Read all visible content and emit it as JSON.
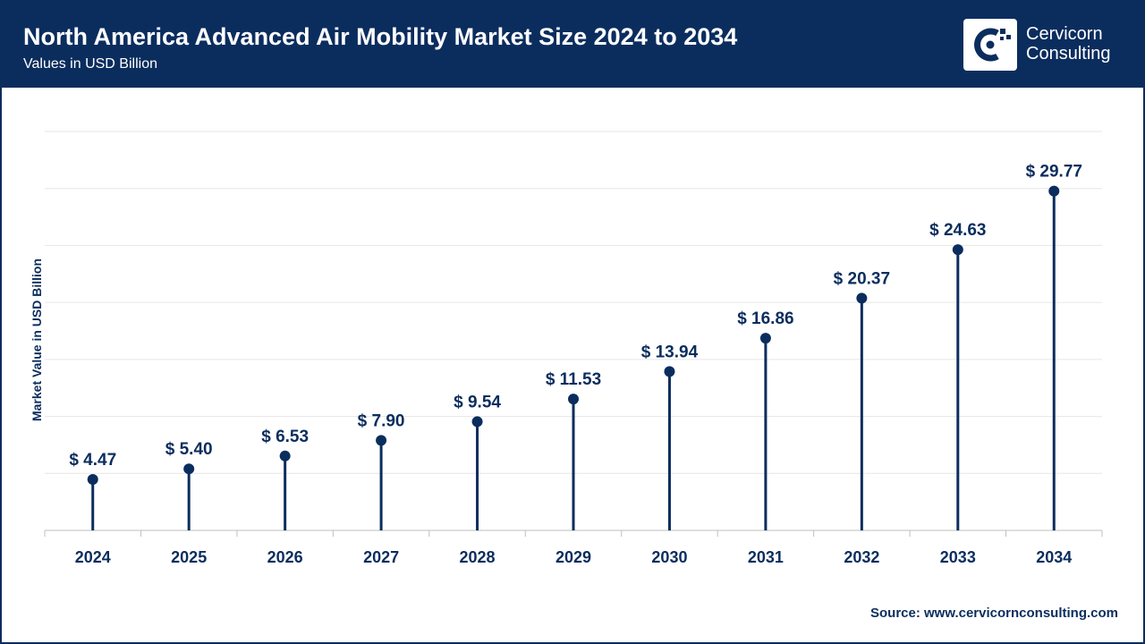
{
  "header": {
    "title": "North America Advanced Air Mobility Market Size 2024 to 2034",
    "subtitle": "Values in USD Billion",
    "logo_line1": "Cervicorn",
    "logo_line2": "Consulting"
  },
  "colors": {
    "navy": "#0b2d5e",
    "grid": "#e6e6e6",
    "axis": "#bfbfbf"
  },
  "chart_data": {
    "type": "lollipop",
    "title": "North America Advanced Air Mobility Market Size 2024 to 2034",
    "ylabel": "Market Value in USD Billion",
    "xlabel": "",
    "ylim": [
      0,
      35
    ],
    "grid": true,
    "categories": [
      "2024",
      "2025",
      "2026",
      "2027",
      "2028",
      "2029",
      "2030",
      "2031",
      "2032",
      "2033",
      "2034"
    ],
    "values": [
      4.47,
      5.4,
      6.53,
      7.9,
      9.54,
      11.53,
      13.94,
      16.86,
      20.37,
      24.63,
      29.77
    ],
    "labels": [
      "$ 4.47",
      "$ 5.40",
      "$ 6.53",
      "$ 7.90",
      "$ 9.54",
      "$ 11.53",
      "$ 13.94",
      "$ 16.86",
      "$ 20.37",
      "$ 24.63",
      "$ 29.77"
    ]
  },
  "footer": {
    "source": "Source: www.cervicornconsulting.com"
  }
}
